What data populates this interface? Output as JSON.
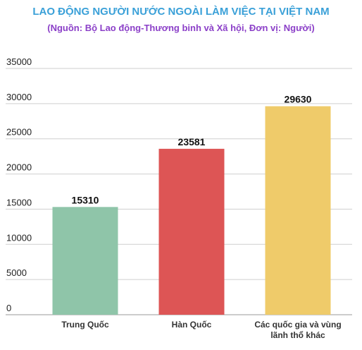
{
  "chart_data": {
    "type": "bar",
    "title": "LAO ĐỘNG NGƯỜI NƯỚC NGOÀI LÀM VIỆC TẠI VIỆT NAM",
    "subtitle": "(Nguồn:  Bộ Lao động-Thương binh và Xã hội, Đơn vị: Người)",
    "categories": [
      [
        "Trung Quốc"
      ],
      [
        "Hàn Quốc"
      ],
      [
        "Các quốc gia và vùng",
        "lãnh thổ khác"
      ]
    ],
    "values": [
      15310,
      23581,
      29630
    ],
    "data_labels": [
      "15310",
      "23581",
      "29630"
    ],
    "ylim": [
      0,
      35000
    ],
    "y_ticks": [
      0,
      5000,
      10000,
      15000,
      20000,
      25000,
      30000,
      35000
    ],
    "grid": true,
    "colors": [
      "#8fc5a9",
      "#dd5555",
      "#efcb6a"
    ]
  }
}
